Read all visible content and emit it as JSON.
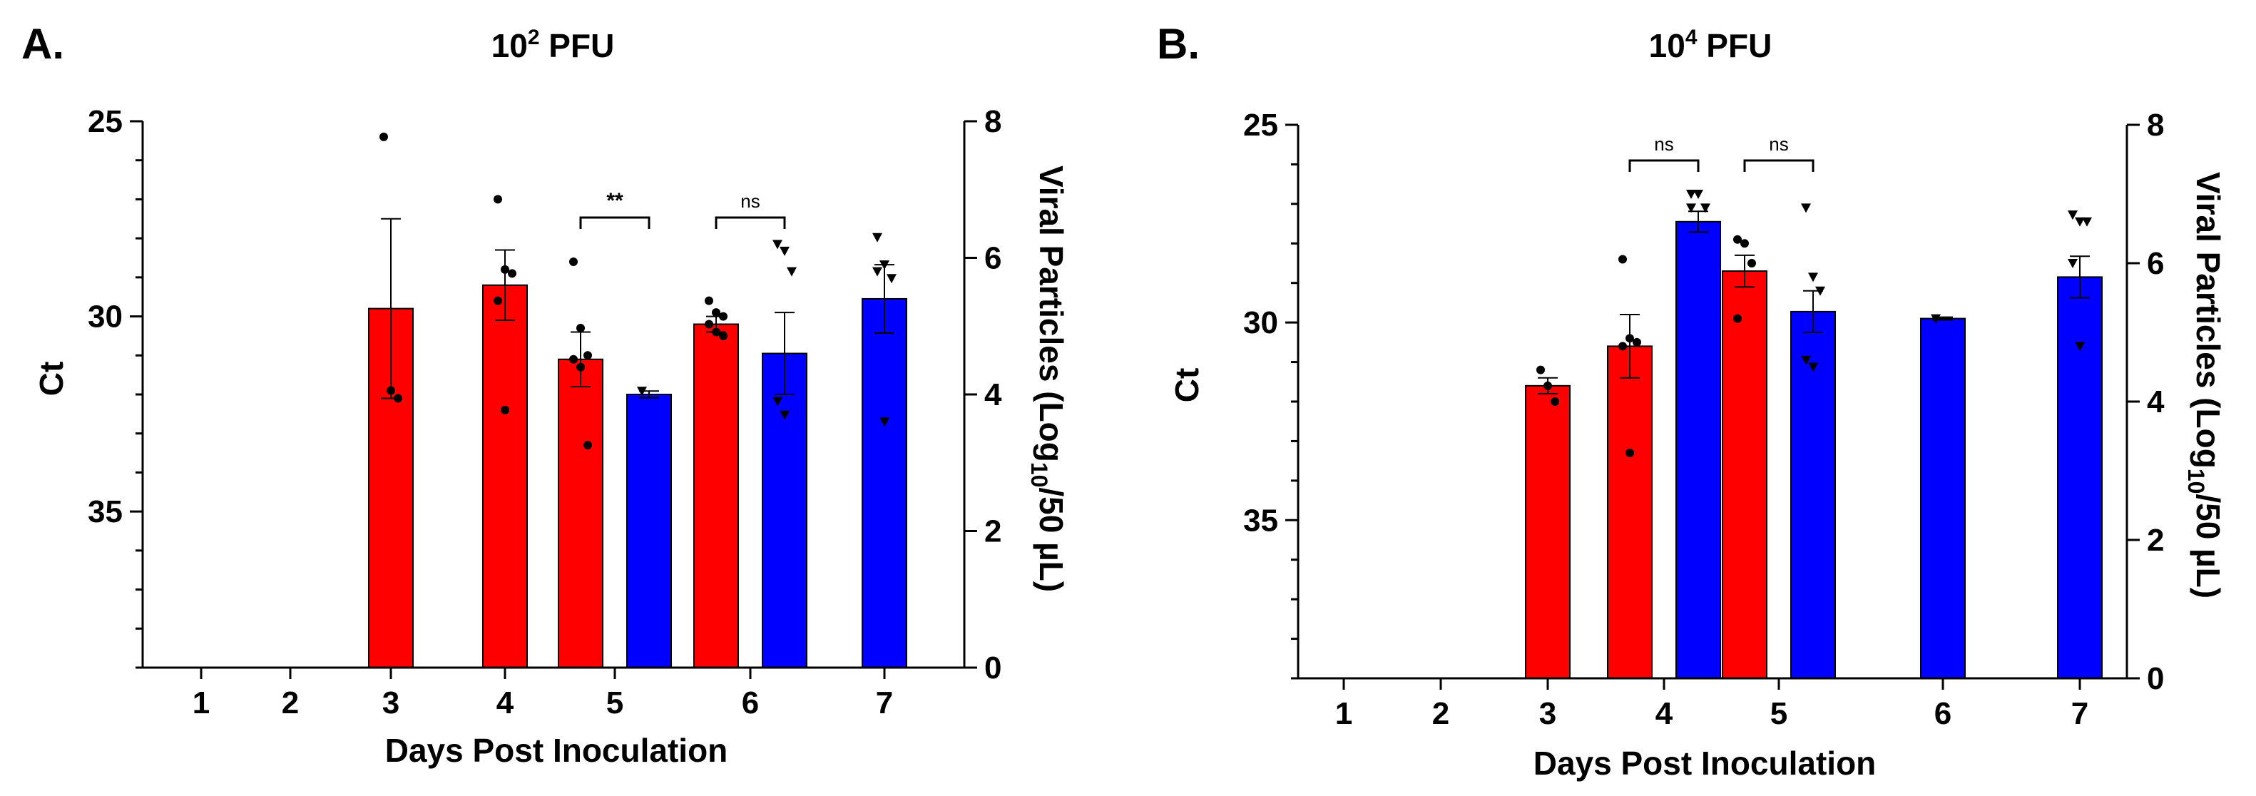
{
  "chart_data": [
    {
      "type": "bar",
      "panel_label": "A.",
      "title": {
        "base": "10",
        "exp": "2",
        "suffix": " PFU"
      },
      "xlabel": "Days Post Inoculation",
      "ylabel_left": "Ct",
      "ylabel_right": {
        "pre": "Viral Particles (Log",
        "sub": "10",
        "post": "/50 µL)"
      },
      "categories": [
        "1",
        "2",
        "3",
        "4",
        "5",
        "6",
        "7"
      ],
      "ylim_left": [
        39,
        25
      ],
      "left_ticks": [
        25,
        30,
        35
      ],
      "ylim_right": [
        0,
        8
      ],
      "right_ticks": [
        0,
        2,
        4,
        6,
        8
      ],
      "series": [
        {
          "name": "Ct",
          "axis": "left",
          "color": "#ff0000",
          "marker": "circle",
          "bars": [
            {
              "day": "3",
              "value": 29.8,
              "err": 2.3,
              "points": [
                25.4,
                31.9,
                32.1
              ]
            },
            {
              "day": "4",
              "value": 29.2,
              "err": 0.9,
              "points": [
                27.0,
                28.8,
                28.9,
                29.6,
                32.4
              ]
            },
            {
              "day": "5",
              "value": 31.1,
              "err": 0.7,
              "points": [
                28.6,
                30.3,
                31.0,
                31.1,
                31.3,
                33.3
              ]
            },
            {
              "day": "6",
              "value": 30.2,
              "err": 0.2,
              "points": [
                29.6,
                29.9,
                30.0,
                30.2,
                30.4,
                30.5
              ]
            }
          ]
        },
        {
          "name": "Viral Particles",
          "axis": "right",
          "color": "#0000ff",
          "marker": "triangle",
          "bars": [
            {
              "day": "5",
              "value": 4.0,
              "err": 0.05,
              "points": [
                4.05
              ]
            },
            {
              "day": "6",
              "value": 4.6,
              "err": 0.6,
              "points": [
                6.2,
                6.1,
                5.8,
                3.9,
                3.7
              ]
            },
            {
              "day": "7",
              "value": 5.4,
              "err": 0.5,
              "points": [
                6.3,
                5.9,
                5.7,
                5.8,
                3.6
              ]
            }
          ]
        }
      ],
      "annotations": [
        {
          "text": "**",
          "day": "5"
        },
        {
          "text": "ns",
          "day": "6"
        }
      ]
    },
    {
      "type": "bar",
      "panel_label": "B.",
      "title": {
        "base": "10",
        "exp": "4",
        "suffix": " PFU"
      },
      "xlabel": "Days Post Inoculation",
      "ylabel_left": "Ct",
      "ylabel_right": {
        "pre": "Viral Particles (Log",
        "sub": "10",
        "post": "/50 µL)"
      },
      "categories": [
        "1",
        "2",
        "3",
        "4",
        "5",
        "6",
        "7"
      ],
      "ylim_left": [
        39,
        25
      ],
      "left_ticks": [
        25,
        30,
        35
      ],
      "ylim_right": [
        0,
        8
      ],
      "right_ticks": [
        0,
        2,
        4,
        6,
        8
      ],
      "series": [
        {
          "name": "Ct",
          "axis": "left",
          "color": "#ff0000",
          "marker": "circle",
          "bars": [
            {
              "day": "3",
              "value": 31.6,
              "err": 0.2,
              "points": [
                31.2,
                31.6,
                32.0
              ]
            },
            {
              "day": "4",
              "value": 30.6,
              "err": 0.8,
              "points": [
                28.4,
                30.4,
                30.5,
                30.6,
                33.3
              ]
            },
            {
              "day": "5",
              "value": 28.7,
              "err": 0.4,
              "points": [
                27.9,
                28.0,
                28.5,
                29.9
              ]
            }
          ]
        },
        {
          "name": "Viral Particles",
          "axis": "right",
          "color": "#0000ff",
          "marker": "triangle",
          "bars": [
            {
              "day": "4",
              "value": 6.6,
              "err": 0.15,
              "points": [
                7.0,
                7.0,
                6.8,
                6.8
              ]
            },
            {
              "day": "5",
              "value": 5.3,
              "err": 0.3,
              "points": [
                6.8,
                5.8,
                5.6,
                4.6,
                4.5
              ]
            },
            {
              "day": "6",
              "value": 5.2,
              "err": 0.02,
              "points": [
                5.2
              ]
            },
            {
              "day": "7",
              "value": 5.8,
              "err": 0.3,
              "points": [
                6.7,
                6.6,
                6.6,
                6.0,
                4.8
              ]
            }
          ]
        }
      ],
      "annotations": [
        {
          "text": "ns",
          "day": "4"
        },
        {
          "text": "ns",
          "day": "5"
        }
      ]
    }
  ]
}
